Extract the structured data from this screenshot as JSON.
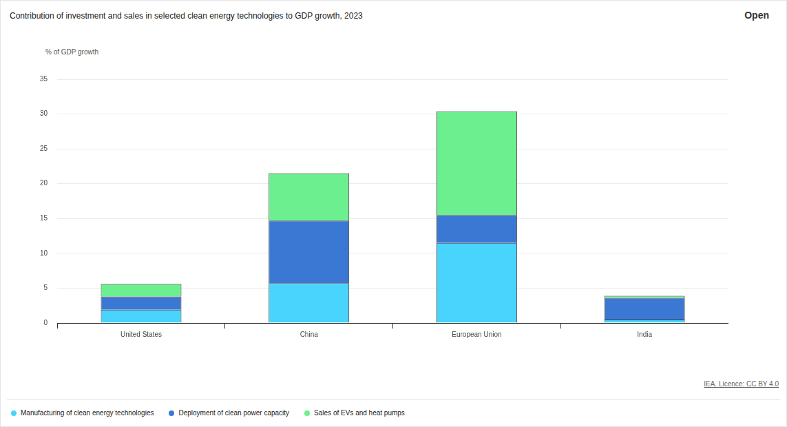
{
  "chart_data": {
    "type": "bar",
    "title": "Contribution of investment and sales in selected clean energy technologies to GDP growth, 2023",
    "y_label": "% of GDP growth",
    "source": "IEA. Licence: CC BY 4.0",
    "button": "Open",
    "categories": [
      "United States",
      "China",
      "European Union",
      "India"
    ],
    "series": [
      {
        "name": "Manufacturing of clean energy technologies",
        "color": "#48d4fc",
        "values": [
          1.9,
          5.7,
          11.5,
          0.5
        ]
      },
      {
        "name": "Deployment of clean power capacity",
        "color": "#3b78d4",
        "values": [
          1.9,
          9.0,
          4.0,
          3.1
        ]
      },
      {
        "name": "Sales of EVs and heat pumps",
        "color": "#6cf08f",
        "values": [
          1.8,
          6.8,
          14.9,
          0.3
        ]
      }
    ],
    "stacked": true,
    "ylim": [
      0,
      35
    ],
    "yticks": [
      0,
      5,
      10,
      15,
      20,
      25,
      30,
      35
    ],
    "grid": true,
    "legend": "bottom-left",
    "data_labels": false
  }
}
